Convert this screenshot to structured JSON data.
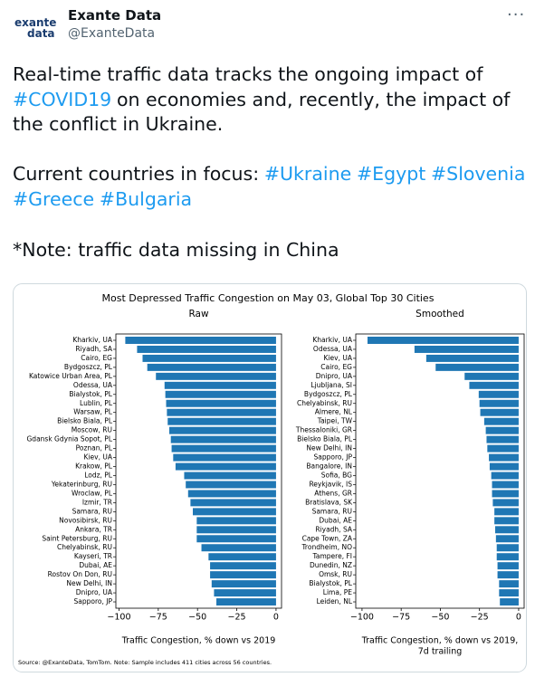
{
  "tweet": {
    "name": "Exante Data",
    "handle": "@ExanteData",
    "logo": [
      "exante",
      "data"
    ],
    "text_lines": [
      [
        "Real-time traffic data tracks the ongoing impact of"
      ],
      [
        "#COVID19",
        "on economies and, recently, the impact of"
      ],
      [
        "the conflict in Ukraine."
      ],
      [
        "Current countries in focus:",
        "#Ukraine",
        "#Egypt",
        "#Slovenia"
      ],
      [
        "#Greece",
        "#Bulgaria"
      ],
      [
        "*Note: traffic data missing in China"
      ]
    ]
  },
  "figure": {
    "title": "Most Depressed Traffic Congestion on May 03, Global Top 30 Cities",
    "source": "Source: @ExanteData, TomTom.  Note: Sample includes 411 cities across 56 countries."
  },
  "chart_data": [
    {
      "type": "bar",
      "orientation": "horizontal",
      "title": "Raw",
      "xlabel": [
        "Traffic Congestion, % down vs 2019"
      ],
      "color": "#1f77b4",
      "categories": [
        "Kharkiv, UA",
        "Riyadh, SA",
        "Cairo, EG",
        "Bydgoszcz, PL",
        "Katowice Urban Area, PL",
        "Odessa, UA",
        "Bialystok, PL",
        "Lublin, PL",
        "Warsaw, PL",
        "Bielsko Biala, PL",
        "Moscow, RU",
        "Gdansk Gdynia Sopot, PL",
        "Poznan, PL",
        "Kiev, UA",
        "Krakow, PL",
        "Lodz, PL",
        "Yekaterinburg, RU",
        "Wroclaw, PL",
        "Izmir, TR",
        "Samara, RU",
        "Novosibirsk, RU",
        "Ankara, TR",
        "Saint Petersburg, RU",
        "Chelyabinsk, RU",
        "Kayseri, TR",
        "Dubai, AE",
        "Rostov On Don, RU",
        "New Delhi, IN",
        "Dnipro, UA",
        "Sapporo, JP"
      ],
      "values": [
        -96,
        -88.5,
        -85,
        -82,
        -76.5,
        -71,
        -70.5,
        -70,
        -69.5,
        -69,
        -68,
        -67,
        -66.5,
        -65.5,
        -64,
        -58.5,
        -57.5,
        -56,
        -54.5,
        -53,
        -50.5,
        -50.5,
        -50.5,
        -47.5,
        -43,
        -42,
        -42,
        -41,
        -39.5,
        -38
      ],
      "xlim": [
        -102,
        3.5
      ],
      "xticks": [
        {
          "value": -100,
          "label": "−100"
        },
        {
          "value": -75,
          "label": "−75"
        },
        {
          "value": -50,
          "label": "−50"
        },
        {
          "value": -25,
          "label": "−25"
        },
        0
      ]
    },
    {
      "type": "bar",
      "orientation": "horizontal",
      "title": "Smoothed",
      "xlabel": [
        "Traffic Congestion, % down vs 2019,",
        "7d trailing"
      ],
      "color": "#1f77b4",
      "categories": [
        "Kharkiv, UA",
        "Odessa, UA",
        "Kiev, UA",
        "Cairo, EG",
        "Dnipro, UA",
        "Ljubljana, SI",
        "Bydgoszcz, PL",
        "Chelyabinsk, RU",
        "Almere, NL",
        "Taipei, TW",
        "Thessaloniki, GR",
        "Bielsko Biala, PL",
        "New Delhi, IN",
        "Sapporo, JP",
        "Bangalore, IN",
        "Sofia, BG",
        "Reykjavik, IS",
        "Athens, GR",
        "Bratislava, SK",
        "Samara, RU",
        "Dubai, AE",
        "Riyadh, SA",
        "Cape Town, ZA",
        "Trondheim, NO",
        "Tampere, FI",
        "Dunedin, NZ",
        "Omsk, RU",
        "Bialystok, PL",
        "Lima, PE",
        "Leiden, NL"
      ],
      "values": [
        -96.5,
        -66.5,
        -59,
        -53,
        -34.5,
        -31.5,
        -25.5,
        -25,
        -24.5,
        -22,
        -21,
        -20.5,
        -20,
        -19,
        -18.5,
        -17.5,
        -17,
        -17,
        -16.5,
        -15.5,
        -15.5,
        -15,
        -14.5,
        -14,
        -14,
        -13.5,
        -13.5,
        -12.5,
        -12.5,
        -12
      ],
      "xlim": [
        -104,
        3.5
      ],
      "xticks": [
        {
          "value": -100,
          "label": "−100"
        },
        {
          "value": -75,
          "label": "−75"
        },
        {
          "value": -50,
          "label": "−50"
        },
        {
          "value": -25,
          "label": "−25"
        },
        0
      ]
    }
  ]
}
